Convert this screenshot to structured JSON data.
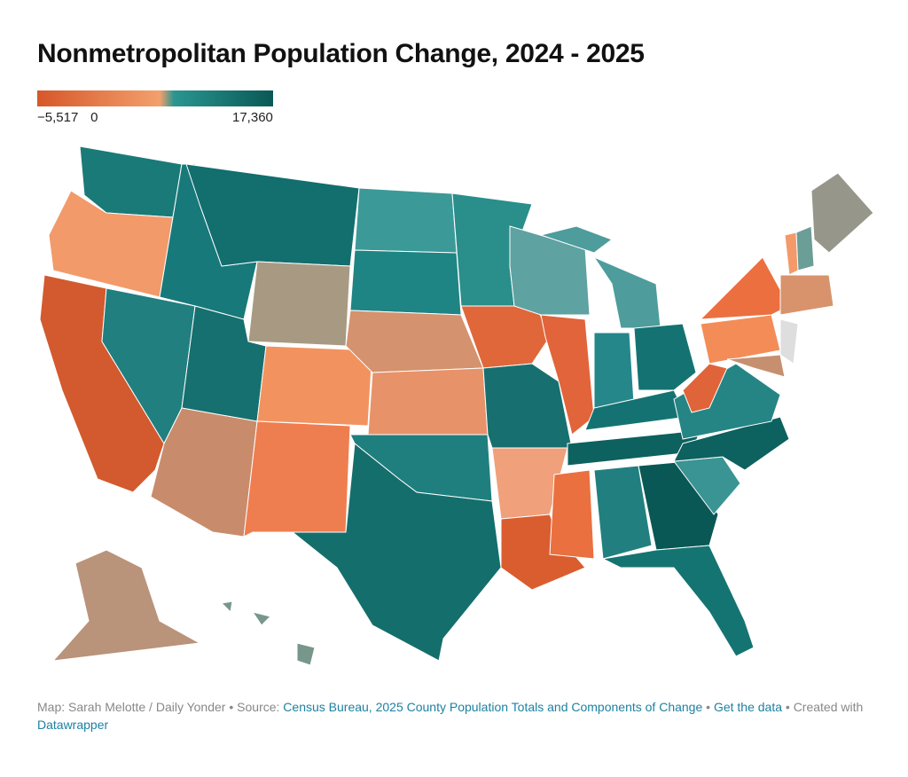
{
  "title": "Nonmetropolitan Population Change, 2024 - 2025",
  "legend": {
    "min": -5517,
    "max": 17360,
    "ticks": [
      {
        "value": -5517,
        "label": "−5,517"
      },
      0,
      {
        "value": 17360,
        "label": "17,360"
      }
    ]
  },
  "footer": {
    "credit": "Map: Sarah Melotte / Daily Yonder",
    "source_label": "Source:",
    "source": "Census Bureau, 2025 County Population Totals and Components of Change",
    "get_data": "Get the data",
    "created_label": "Created with",
    "tool": "Datawrapper"
  }
}
